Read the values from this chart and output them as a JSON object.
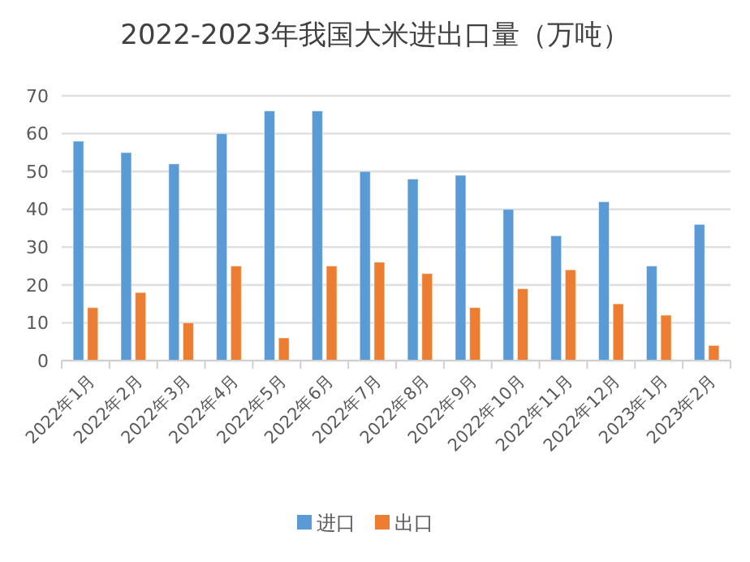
{
  "chart_data": {
    "type": "bar",
    "title": "2022-2023年我国大米进出口量（万吨）",
    "categories": [
      "2022年1月",
      "2022年2月",
      "2022年3月",
      "2022年4月",
      "2022年5月",
      "2022年6月",
      "2022年7月",
      "2022年8月",
      "2022年9月",
      "2022年10月",
      "2022年11月",
      "2022年12月",
      "2023年1月",
      "2023年2月"
    ],
    "series": [
      {
        "name": "进口",
        "color": "#5b9bd5",
        "values": [
          58,
          55,
          52,
          60,
          66,
          66,
          50,
          48,
          49,
          40,
          33,
          42,
          25,
          36
        ]
      },
      {
        "name": "出口",
        "color": "#ed7d31",
        "values": [
          14,
          18,
          10,
          25,
          6,
          25,
          26,
          23,
          14,
          19,
          24,
          15,
          12,
          4
        ]
      }
    ],
    "ylim": [
      0,
      70
    ],
    "yticks": [
      0,
      10,
      20,
      30,
      40,
      50,
      60,
      70
    ],
    "grid": "y",
    "legend": "bottom"
  }
}
